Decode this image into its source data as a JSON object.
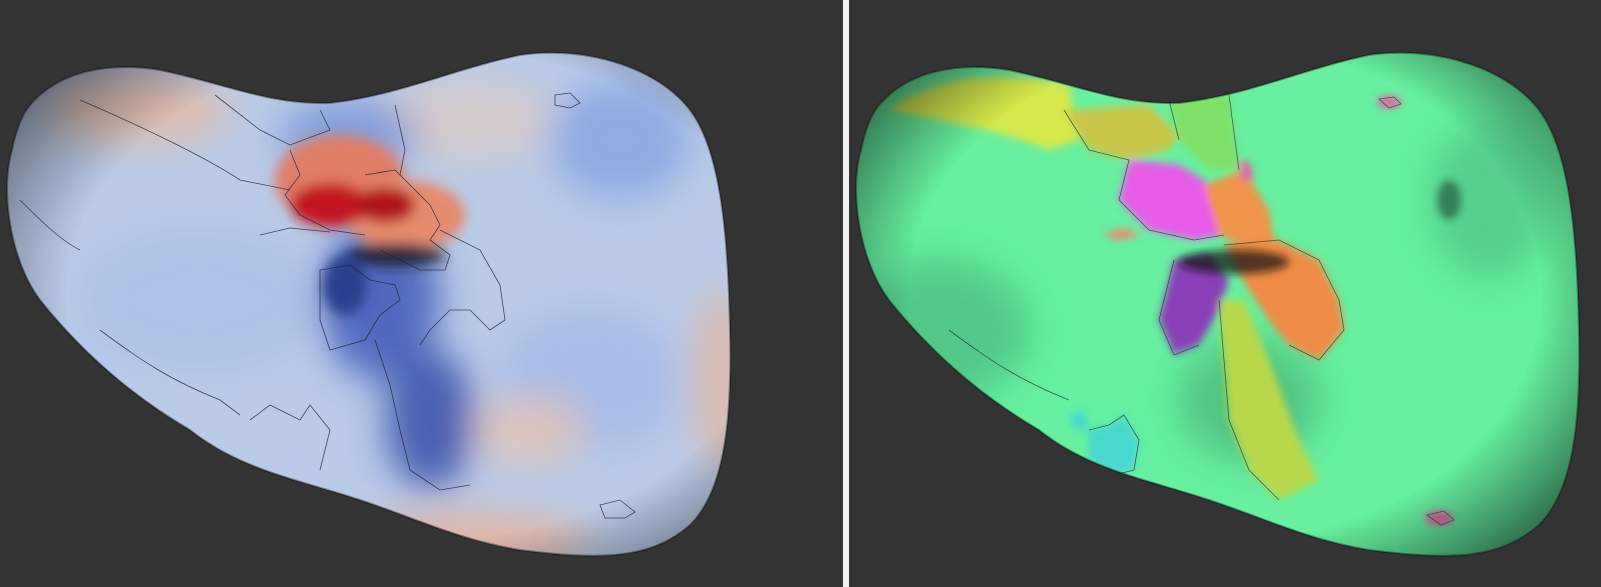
{
  "views": [
    {
      "id": "left",
      "map": "continuous",
      "colors": {
        "low": "#2f4fa8",
        "mid": "#b9cbe8",
        "high": "#c8141f",
        "background": "#333333",
        "boundary": "#1e2430"
      }
    },
    {
      "id": "right",
      "map": "parcellation",
      "colors": {
        "base": "#66f0a0",
        "yellow": "#d6e84c",
        "orange": "#f08a45",
        "magenta": "#e85ae8",
        "purple": "#8a3fb8",
        "cyan": "#49d8d0",
        "pink": "#e85fa5",
        "background": "#333333",
        "boundary": "#1e2430"
      }
    }
  ],
  "divider": {
    "color": "#f2f2f2"
  }
}
